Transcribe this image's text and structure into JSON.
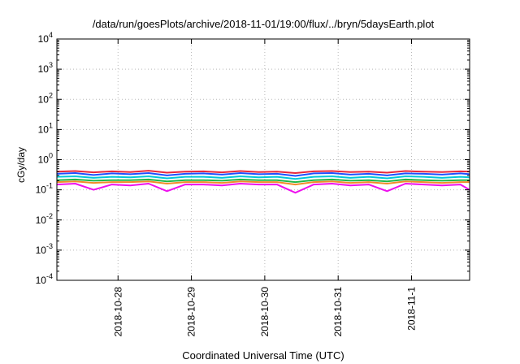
{
  "chart_data": {
    "type": "line",
    "title": "/data/run/goesPlots/archive/2018-11-01/19:00/flux/../bryn/5daysEarth.plot",
    "xlabel": "Coordinated Universal Time (UTC)",
    "ylabel": "cGy/day",
    "y_scale": "log",
    "ylim": [
      0.0001,
      10000
    ],
    "xlim": [
      "2018-10-27 04:00",
      "2018-11-01 19:00"
    ],
    "grid": true,
    "legend": "none",
    "y_ticks": [
      {
        "base": "10",
        "exp": "-4"
      },
      {
        "base": "10",
        "exp": "-3"
      },
      {
        "base": "10",
        "exp": "-2"
      },
      {
        "base": "10",
        "exp": "-1"
      },
      {
        "base": "10",
        "exp": "0"
      },
      {
        "base": "10",
        "exp": "1"
      },
      {
        "base": "10",
        "exp": "2"
      },
      {
        "base": "10",
        "exp": "3"
      },
      {
        "base": "10",
        "exp": "4"
      }
    ],
    "x_ticks": [
      "2018-10-28",
      "2018-10-29",
      "2018-10-30",
      "2018-10-31",
      "2018-11-1"
    ],
    "x": [
      "2018-10-27 04:00",
      "2018-10-27 10:00",
      "2018-10-27 16:00",
      "2018-10-27 22:00",
      "2018-10-28 04:00",
      "2018-10-28 10:00",
      "2018-10-28 16:00",
      "2018-10-28 22:00",
      "2018-10-29 04:00",
      "2018-10-29 10:00",
      "2018-10-29 16:00",
      "2018-10-29 22:00",
      "2018-10-30 04:00",
      "2018-10-30 10:00",
      "2018-10-30 16:00",
      "2018-10-30 22:00",
      "2018-10-31 04:00",
      "2018-10-31 10:00",
      "2018-10-31 16:00",
      "2018-10-31 22:00",
      "2018-11-01 04:00",
      "2018-11-01 10:00",
      "2018-11-01 16:00",
      "2018-11-01 19:00"
    ],
    "series": [
      {
        "color": "#e8283c",
        "values": [
          0.4,
          0.42,
          0.38,
          0.41,
          0.39,
          0.43,
          0.37,
          0.4,
          0.41,
          0.38,
          0.42,
          0.39,
          0.4,
          0.36,
          0.41,
          0.42,
          0.39,
          0.4,
          0.37,
          0.42,
          0.4,
          0.39,
          0.41,
          0.4
        ]
      },
      {
        "color": "#1e50ff",
        "values": [
          0.34,
          0.36,
          0.31,
          0.35,
          0.33,
          0.36,
          0.3,
          0.34,
          0.35,
          0.32,
          0.36,
          0.33,
          0.34,
          0.29,
          0.35,
          0.36,
          0.32,
          0.34,
          0.3,
          0.35,
          0.34,
          0.32,
          0.35,
          0.33
        ]
      },
      {
        "color": "#00c8d8",
        "values": [
          0.27,
          0.28,
          0.25,
          0.27,
          0.26,
          0.28,
          0.24,
          0.27,
          0.27,
          0.25,
          0.28,
          0.26,
          0.27,
          0.23,
          0.27,
          0.28,
          0.25,
          0.27,
          0.24,
          0.28,
          0.27,
          0.25,
          0.27,
          0.26
        ]
      },
      {
        "color": "#20b848",
        "values": [
          0.21,
          0.22,
          0.2,
          0.21,
          0.21,
          0.22,
          0.19,
          0.21,
          0.21,
          0.2,
          0.22,
          0.21,
          0.21,
          0.18,
          0.21,
          0.22,
          0.2,
          0.21,
          0.19,
          0.22,
          0.21,
          0.2,
          0.21,
          0.21
        ]
      },
      {
        "color": "#f08c28",
        "values": [
          0.18,
          0.19,
          0.17,
          0.18,
          0.18,
          0.19,
          0.16,
          0.18,
          0.18,
          0.17,
          0.19,
          0.18,
          0.18,
          0.15,
          0.18,
          0.19,
          0.17,
          0.18,
          0.16,
          0.19,
          0.18,
          0.17,
          0.18,
          0.18
        ]
      },
      {
        "color": "#ee10ee",
        "values": [
          0.15,
          0.16,
          0.1,
          0.15,
          0.14,
          0.16,
          0.09,
          0.15,
          0.15,
          0.14,
          0.16,
          0.15,
          0.15,
          0.08,
          0.15,
          0.16,
          0.14,
          0.15,
          0.09,
          0.16,
          0.15,
          0.14,
          0.15,
          0.1
        ]
      }
    ]
  }
}
